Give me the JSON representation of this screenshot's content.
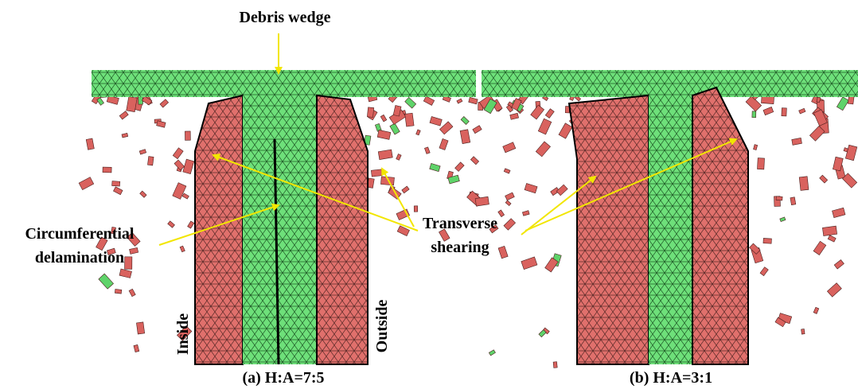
{
  "panels": [
    {
      "caption": "(a) H:A=7:5",
      "inner_label": "Inside",
      "outer_label": "Outside"
    },
    {
      "caption": "(b) H:A=3:1"
    }
  ],
  "annotations": {
    "debris_wedge": "Debris wedge",
    "delamination": [
      "Circumferential",
      "delamination"
    ],
    "shearing": [
      "Transverse",
      "shearing"
    ]
  }
}
